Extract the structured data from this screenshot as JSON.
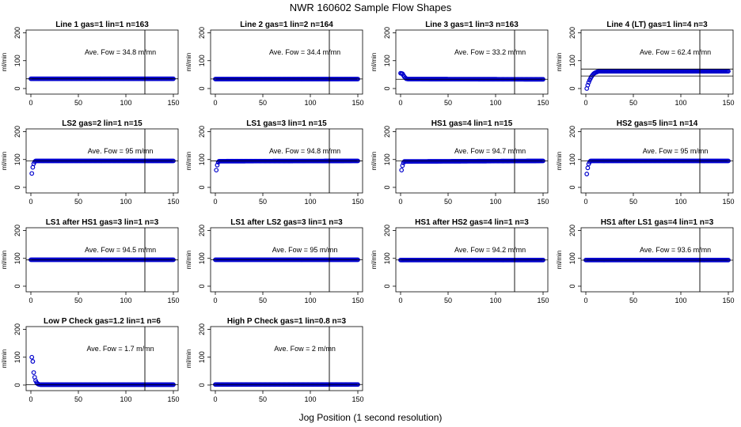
{
  "page": {
    "title": "NWR  160602  Sample Flow Shapes",
    "xlabel": "Jog Position (1 second resolution)"
  },
  "colors": {
    "points": "#0000cc",
    "axes": "#000000"
  },
  "chart_data": [
    {
      "type": "scatter",
      "title": "Line 1 gas=1 lin=1 n=163",
      "ylabel": "ml/min",
      "annotation": "Ave. Fow =  34.8  m/mn",
      "xlim": [
        0,
        150
      ],
      "ylim": [
        -20,
        210
      ],
      "xticks": [
        0,
        50,
        100,
        150
      ],
      "yticks": [
        0,
        100,
        200
      ],
      "vline_x": 120,
      "hlines": [
        34.8
      ],
      "points": [
        [
          0,
          35
        ],
        [
          150,
          35
        ]
      ],
      "step": 1
    },
    {
      "type": "scatter",
      "title": "Line 2 gas=1 lin=2 n=164",
      "ylabel": "ml/min",
      "annotation": "Ave. Fow =  34.4  m/mn",
      "xlim": [
        0,
        150
      ],
      "ylim": [
        -20,
        210
      ],
      "xticks": [
        0,
        50,
        100,
        150
      ],
      "yticks": [
        0,
        100,
        200
      ],
      "vline_x": 120,
      "hlines": [
        34.4
      ],
      "points": [
        [
          0,
          34
        ],
        [
          150,
          34
        ]
      ],
      "step": 1
    },
    {
      "type": "scatter",
      "title": "Line 3 gas=1 lin=3 n=163",
      "ylabel": "ml/min",
      "annotation": "Ave. Fow =  33.2  m/mn",
      "xlim": [
        0,
        150
      ],
      "ylim": [
        -20,
        210
      ],
      "xticks": [
        0,
        50,
        100,
        150
      ],
      "yticks": [
        0,
        100,
        200
      ],
      "vline_x": 120,
      "hlines": [
        33.2
      ],
      "points": [
        [
          0,
          55
        ],
        [
          2,
          53
        ],
        [
          4,
          42
        ],
        [
          6,
          35
        ],
        [
          8,
          34
        ],
        [
          150,
          33
        ]
      ],
      "step": 1
    },
    {
      "type": "scatter",
      "title": "Line 4 (LT) gas=1 lin=4 n=3",
      "ylabel": "ml/min",
      "annotation": "Ave. Fow =  62.4  m/mn",
      "xlim": [
        0,
        150
      ],
      "ylim": [
        -20,
        210
      ],
      "xticks": [
        0,
        50,
        100,
        150
      ],
      "yticks": [
        0,
        100,
        200
      ],
      "vline_x": 120,
      "hlines": [
        45,
        70
      ],
      "points": [
        [
          1,
          0
        ],
        [
          2,
          12
        ],
        [
          3,
          22
        ],
        [
          4,
          30
        ],
        [
          5,
          37
        ],
        [
          6,
          43
        ],
        [
          7,
          48
        ],
        [
          8,
          52
        ],
        [
          9,
          55
        ],
        [
          10,
          57
        ],
        [
          12,
          60
        ],
        [
          14,
          62
        ],
        [
          150,
          62
        ]
      ],
      "step": 1
    },
    {
      "type": "scatter",
      "title": "LS2 gas=2 lin=1 n=15",
      "ylabel": "ml/min",
      "annotation": "Ave. Fow =  95  m/mn",
      "xlim": [
        0,
        150
      ],
      "ylim": [
        -20,
        210
      ],
      "xticks": [
        0,
        50,
        100,
        150
      ],
      "yticks": [
        0,
        100,
        200
      ],
      "vline_x": 120,
      "hlines": [
        95
      ],
      "points": [
        [
          1,
          50
        ],
        [
          2,
          72
        ],
        [
          3,
          85
        ],
        [
          4,
          92
        ],
        [
          5,
          95
        ],
        [
          150,
          95
        ]
      ],
      "step": 1
    },
    {
      "type": "scatter",
      "title": "LS1 gas=3 lin=1 n=15",
      "ylabel": "ml/min",
      "annotation": "Ave. Fow =  94.8  m/mn",
      "xlim": [
        0,
        150
      ],
      "ylim": [
        -20,
        210
      ],
      "xticks": [
        0,
        50,
        100,
        150
      ],
      "yticks": [
        0,
        100,
        200
      ],
      "vline_x": 120,
      "hlines": [
        94.8
      ],
      "points": [
        [
          1,
          62
        ],
        [
          2,
          80
        ],
        [
          3,
          90
        ],
        [
          4,
          94
        ],
        [
          150,
          95
        ]
      ],
      "step": 1
    },
    {
      "type": "scatter",
      "title": "HS1 gas=4 lin=1 n=15",
      "ylabel": "ml/min",
      "annotation": "Ave. Fow =  94.7  m/mn",
      "xlim": [
        0,
        150
      ],
      "ylim": [
        -20,
        210
      ],
      "xticks": [
        0,
        50,
        100,
        150
      ],
      "yticks": [
        0,
        100,
        200
      ],
      "vline_x": 120,
      "hlines": [
        94.7
      ],
      "points": [
        [
          1,
          62
        ],
        [
          2,
          78
        ],
        [
          3,
          88
        ],
        [
          4,
          93
        ],
        [
          150,
          95
        ]
      ],
      "step": 1
    },
    {
      "type": "scatter",
      "title": "HS2 gas=5 lin=1 n=14",
      "ylabel": "ml/min",
      "annotation": "Ave. Fow =  95  m/mn",
      "xlim": [
        0,
        150
      ],
      "ylim": [
        -20,
        210
      ],
      "xticks": [
        0,
        50,
        100,
        150
      ],
      "yticks": [
        0,
        100,
        200
      ],
      "vline_x": 120,
      "hlines": [
        95
      ],
      "points": [
        [
          1,
          48
        ],
        [
          2,
          70
        ],
        [
          3,
          84
        ],
        [
          4,
          91
        ],
        [
          5,
          95
        ],
        [
          150,
          95
        ]
      ],
      "step": 1
    },
    {
      "type": "scatter",
      "title": "LS1 after HS1 gas=3 lin=1 n=3",
      "ylabel": "ml/min",
      "annotation": "Ave. Fow =  94.5  m/mn",
      "xlim": [
        0,
        150
      ],
      "ylim": [
        -20,
        210
      ],
      "xticks": [
        0,
        50,
        100,
        150
      ],
      "yticks": [
        0,
        100,
        200
      ],
      "vline_x": 120,
      "hlines": [
        94.5
      ],
      "points": [
        [
          0,
          95
        ],
        [
          150,
          95
        ]
      ],
      "step": 1
    },
    {
      "type": "scatter",
      "title": "LS1 after LS2 gas=3 lin=1 n=3",
      "ylabel": "ml/min",
      "annotation": "Ave. Fow =  95  m/mn",
      "xlim": [
        0,
        150
      ],
      "ylim": [
        -20,
        210
      ],
      "xticks": [
        0,
        50,
        100,
        150
      ],
      "yticks": [
        0,
        100,
        200
      ],
      "vline_x": 120,
      "hlines": [
        95
      ],
      "points": [
        [
          0,
          95
        ],
        [
          150,
          95
        ]
      ],
      "step": 1
    },
    {
      "type": "scatter",
      "title": "HS1 after HS2 gas=4 lin=1 n=3",
      "ylabel": "ml/min",
      "annotation": "Ave. Fow =  94.2  m/mn",
      "xlim": [
        0,
        150
      ],
      "ylim": [
        -20,
        210
      ],
      "xticks": [
        0,
        50,
        100,
        150
      ],
      "yticks": [
        0,
        100,
        200
      ],
      "vline_x": 120,
      "hlines": [
        94.2
      ],
      "points": [
        [
          0,
          94
        ],
        [
          150,
          94
        ]
      ],
      "step": 1
    },
    {
      "type": "scatter",
      "title": "HS1 after LS1 gas=4 lin=1 n=3",
      "ylabel": "ml/min",
      "annotation": "Ave. Fow =  93.6  m/mn",
      "xlim": [
        0,
        150
      ],
      "ylim": [
        -20,
        210
      ],
      "xticks": [
        0,
        50,
        100,
        150
      ],
      "yticks": [
        0,
        100,
        200
      ],
      "vline_x": 120,
      "hlines": [
        93.6
      ],
      "points": [
        [
          0,
          94
        ],
        [
          150,
          94
        ]
      ],
      "step": 1
    },
    {
      "type": "scatter",
      "title": "Low P Check gas=1.2 lin=1 n=6",
      "ylabel": "ml/min",
      "annotation": "Ave. Fow =  1.7  m/mn",
      "xlim": [
        0,
        150
      ],
      "ylim": [
        -20,
        210
      ],
      "xticks": [
        0,
        50,
        100,
        150
      ],
      "yticks": [
        0,
        100,
        200
      ],
      "vline_x": 120,
      "hlines": [
        1.7
      ],
      "points": [
        [
          1,
          100
        ],
        [
          2,
          85
        ],
        [
          3,
          45
        ],
        [
          4,
          28
        ],
        [
          5,
          16
        ],
        [
          6,
          9
        ],
        [
          7,
          5
        ],
        [
          8,
          3
        ],
        [
          9,
          2
        ],
        [
          10,
          1.5
        ],
        [
          150,
          1.5
        ]
      ],
      "step": 1
    },
    {
      "type": "scatter",
      "title": "High P Check gas=1 lin=0.8 n=3",
      "ylabel": "ml/min",
      "annotation": "Ave. Fow =  2  m/mn",
      "xlim": [
        0,
        150
      ],
      "ylim": [
        -20,
        210
      ],
      "xticks": [
        0,
        50,
        100,
        150
      ],
      "yticks": [
        0,
        100,
        200
      ],
      "vline_x": 120,
      "hlines": [
        2
      ],
      "points": [
        [
          0,
          2
        ],
        [
          150,
          2
        ]
      ],
      "step": 1
    }
  ]
}
